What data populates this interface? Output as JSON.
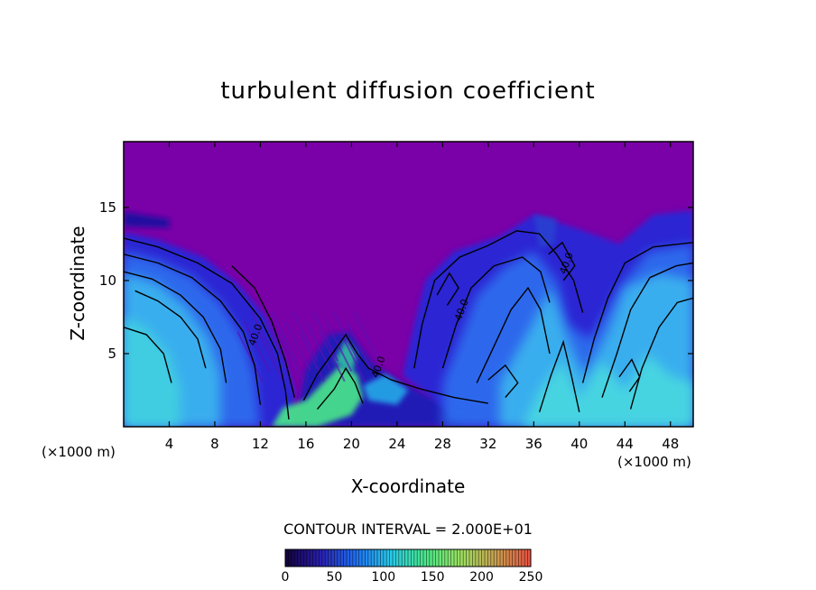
{
  "chart_data": {
    "type": "heatmap",
    "title": "turbulent diffusion coefficient",
    "xlabel": "X-coordinate",
    "ylabel": "Z-coordinate",
    "x_unit": "(×1000 m)",
    "y_unit": "(×1000 m)",
    "xlim": [
      0,
      50
    ],
    "ylim": [
      0,
      19.5
    ],
    "x_ticks": [
      4,
      8,
      12,
      16,
      20,
      24,
      28,
      32,
      36,
      40,
      44,
      48
    ],
    "y_ticks": [
      5,
      10,
      15
    ],
    "contour_interval_text": "CONTOUR INTERVAL = 2.000E+01",
    "contour_interval": 20,
    "contour_labels": [
      {
        "x": 11.5,
        "z": 5.5,
        "text": "40.0"
      },
      {
        "x": 22.3,
        "z": 3.3,
        "text": "40.0"
      },
      {
        "x": 29.6,
        "z": 7.2,
        "text": "40.0"
      },
      {
        "x": 38.8,
        "z": 10.4,
        "text": "40.0"
      }
    ],
    "colorbar": {
      "min": 0,
      "max": 250,
      "ticks": [
        0,
        50,
        100,
        150,
        200,
        250
      ],
      "colors": [
        "#12003a",
        "#2a1fb0",
        "#1f6ff2",
        "#28c8e8",
        "#48e888",
        "#9ce060",
        "#c8a050",
        "#e85040"
      ]
    },
    "background_color": "#7a00a8"
  }
}
